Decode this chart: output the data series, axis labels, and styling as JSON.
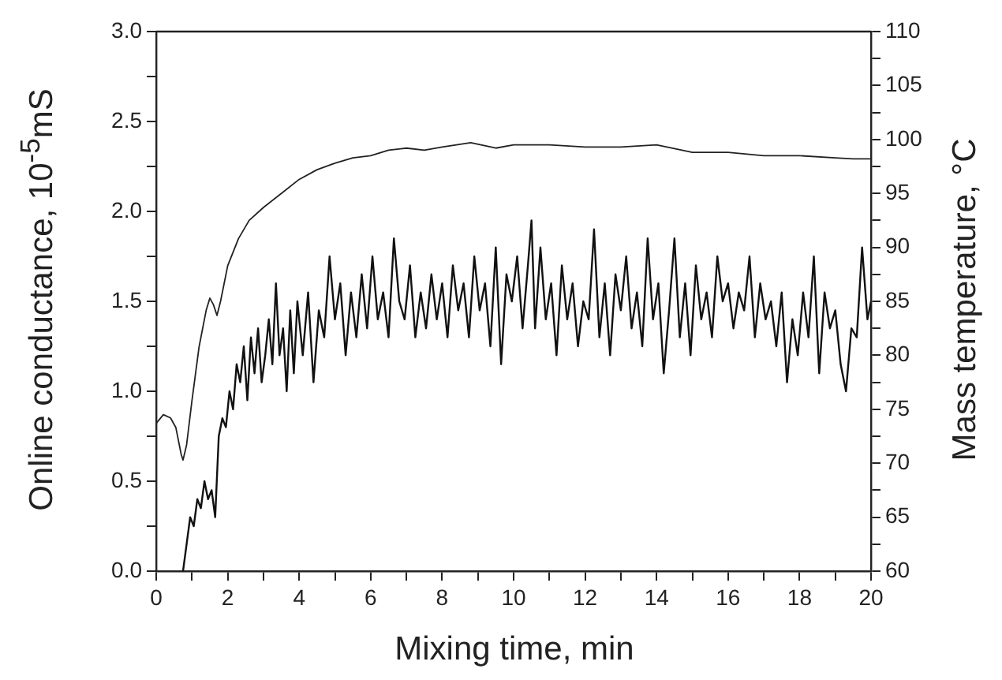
{
  "chart_data": {
    "type": "line",
    "xlabel": "Mixing time, min",
    "ylabel": "Online conductance, 10$^{-5}$mS",
    "y2label": "Mass temperature, °C",
    "xlim": [
      0,
      20
    ],
    "xticks": [
      0,
      {
        "value": 1,
        "label": null
      },
      2,
      {
        "value": 3,
        "label": null
      },
      4,
      {
        "value": 5,
        "label": null
      },
      6,
      {
        "value": 7,
        "label": null
      },
      8,
      {
        "value": 9,
        "label": null
      },
      10,
      {
        "value": 11,
        "label": null
      },
      12,
      {
        "value": 13,
        "label": null
      },
      14,
      {
        "value": 15,
        "label": null
      },
      16,
      {
        "value": 17,
        "label": null
      },
      18,
      {
        "value": 19,
        "label": null
      },
      20
    ],
    "ylim": [
      0,
      3
    ],
    "yticks": [
      {
        "value": 0,
        "label": "0.0"
      },
      {
        "value": 0.25,
        "label": null
      },
      {
        "value": 0.5,
        "label": "0.5"
      },
      {
        "value": 0.75,
        "label": null
      },
      {
        "value": 1,
        "label": "1.0"
      },
      {
        "value": 1.25,
        "label": null
      },
      {
        "value": 1.5,
        "label": "1.5"
      },
      {
        "value": 1.75,
        "label": null
      },
      {
        "value": 2,
        "label": "2.0"
      },
      {
        "value": 2.25,
        "label": null
      },
      {
        "value": 2.5,
        "label": "2.5"
      },
      {
        "value": 2.75,
        "label": null
      },
      {
        "value": 3,
        "label": "3.0"
      }
    ],
    "y2lim": [
      60,
      110
    ],
    "y2ticks": [
      60,
      {
        "value": 62.5,
        "label": null
      },
      65,
      {
        "value": 67.5,
        "label": null
      },
      70,
      {
        "value": 72.5,
        "label": null
      },
      75,
      {
        "value": 77.5,
        "label": null
      },
      80,
      {
        "value": 82.5,
        "label": null
      },
      85,
      {
        "value": 87.5,
        "label": null
      },
      90,
      {
        "value": 92.5,
        "label": null
      },
      95,
      {
        "value": 97.5,
        "label": null
      },
      100,
      {
        "value": 102.5,
        "label": null
      },
      105,
      {
        "value": 107.5,
        "label": null
      },
      110
    ],
    "legend": false,
    "grid": false,
    "marker": "none",
    "line_style": "solid",
    "series": [
      {
        "color": "#111111",
        "x": [
          0.75,
          0.85,
          0.95,
          1.05,
          1.15,
          1.25,
          1.35,
          1.45,
          1.55,
          1.65,
          1.75,
          1.85,
          1.95,
          2.05,
          2.15,
          2.25,
          2.35,
          2.45,
          2.55,
          2.65,
          2.75,
          2.85,
          2.95,
          3.05,
          3.15,
          3.25,
          3.35,
          3.45,
          3.55,
          3.65,
          3.75,
          3.85,
          3.95,
          4.1,
          4.25,
          4.4,
          4.55,
          4.7,
          4.85,
          5.0,
          5.15,
          5.3,
          5.45,
          5.6,
          5.75,
          5.9,
          6.05,
          6.2,
          6.35,
          6.5,
          6.65,
          6.8,
          6.95,
          7.1,
          7.25,
          7.4,
          7.55,
          7.7,
          7.85,
          8.0,
          8.15,
          8.3,
          8.45,
          8.6,
          8.75,
          8.9,
          9.05,
          9.2,
          9.35,
          9.5,
          9.65,
          9.8,
          9.95,
          10.1,
          10.25,
          10.4,
          10.5,
          10.6,
          10.75,
          10.9,
          11.05,
          11.2,
          11.35,
          11.5,
          11.65,
          11.8,
          11.95,
          12.1,
          12.25,
          12.4,
          12.55,
          12.7,
          12.85,
          13.0,
          13.15,
          13.3,
          13.45,
          13.6,
          13.75,
          13.9,
          14.05,
          14.2,
          14.35,
          14.5,
          14.65,
          14.8,
          14.95,
          15.1,
          15.25,
          15.4,
          15.55,
          15.7,
          15.85,
          16.0,
          16.15,
          16.3,
          16.45,
          16.6,
          16.75,
          16.9,
          17.05,
          17.2,
          17.35,
          17.5,
          17.65,
          17.8,
          17.95,
          18.1,
          18.25,
          18.4,
          18.55,
          18.7,
          18.85,
          19.0,
          19.15,
          19.3,
          19.45,
          19.6,
          19.75,
          19.9,
          20.0
        ],
        "values": [
          0,
          0.15,
          0.3,
          0.25,
          0.4,
          0.35,
          0.5,
          0.4,
          0.45,
          0.3,
          0.75,
          0.85,
          0.8,
          1.0,
          0.9,
          1.15,
          1.05,
          1.25,
          0.95,
          1.3,
          1.1,
          1.35,
          1.05,
          1.2,
          1.4,
          1.15,
          1.6,
          1.2,
          1.35,
          1.0,
          1.45,
          1.1,
          1.5,
          1.2,
          1.55,
          1.05,
          1.45,
          1.3,
          1.75,
          1.4,
          1.6,
          1.2,
          1.55,
          1.3,
          1.65,
          1.35,
          1.75,
          1.4,
          1.55,
          1.3,
          1.85,
          1.5,
          1.4,
          1.7,
          1.3,
          1.55,
          1.35,
          1.65,
          1.4,
          1.6,
          1.3,
          1.7,
          1.45,
          1.6,
          1.3,
          1.75,
          1.45,
          1.6,
          1.25,
          1.8,
          1.15,
          1.65,
          1.5,
          1.75,
          1.35,
          1.7,
          1.95,
          1.35,
          1.8,
          1.4,
          1.6,
          1.2,
          1.7,
          1.4,
          1.6,
          1.25,
          1.5,
          1.4,
          1.9,
          1.3,
          1.6,
          1.2,
          1.65,
          1.45,
          1.75,
          1.35,
          1.55,
          1.25,
          1.85,
          1.4,
          1.6,
          1.1,
          1.45,
          1.85,
          1.3,
          1.6,
          1.2,
          1.7,
          1.4,
          1.55,
          1.3,
          1.75,
          1.5,
          1.6,
          1.35,
          1.55,
          1.45,
          1.75,
          1.3,
          1.6,
          1.4,
          1.5,
          1.25,
          1.55,
          1.05,
          1.4,
          1.2,
          1.55,
          1.3,
          1.75,
          1.1,
          1.55,
          1.35,
          1.45,
          1.15,
          1.0,
          1.35,
          1.3,
          1.8,
          1.4,
          1.5
        ]
      },
      {
        "color": "#222222",
        "axis": "y2",
        "x": [
          0,
          0.2,
          0.4,
          0.55,
          0.7,
          0.75,
          0.85,
          1.0,
          1.2,
          1.4,
          1.5,
          1.6,
          1.7,
          1.8,
          2.0,
          2.3,
          2.6,
          3,
          3.5,
          4,
          4.5,
          5,
          5.5,
          6,
          6.5,
          7,
          7.5,
          8,
          8.8,
          9.5,
          10,
          11,
          12,
          13,
          14,
          15,
          16,
          17,
          18,
          19,
          19.5,
          20
        ],
        "values": [
          73.7,
          74.5,
          74.2,
          73.3,
          70.8,
          70.3,
          71.7,
          75.8,
          80.8,
          84.2,
          85.3,
          84.7,
          83.7,
          85,
          88.3,
          90.8,
          92.5,
          93.7,
          95,
          96.3,
          97.2,
          97.8,
          98.3,
          98.5,
          99,
          99.2,
          99,
          99.3,
          99.7,
          99.2,
          99.5,
          99.5,
          99.3,
          99.3,
          99.5,
          98.8,
          98.8,
          98.5,
          98.5,
          98.3,
          98.2,
          98.2
        ]
      }
    ]
  }
}
